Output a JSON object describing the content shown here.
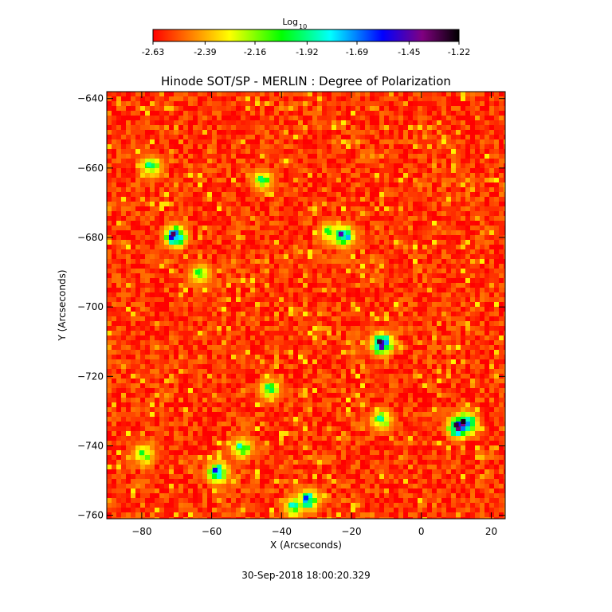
{
  "chart_data": {
    "type": "heatmap",
    "title": "Hinode SOT/SP - MERLIN : Degree of Polarization",
    "xlabel": "X (Arcseconds)",
    "ylabel": "Y (Arcseconds)",
    "xlim": [
      -90,
      24
    ],
    "ylim": [
      -761,
      -638
    ],
    "x_ticks": [
      -80,
      -60,
      -40,
      -20,
      0,
      20
    ],
    "y_ticks": [
      -640,
      -660,
      -680,
      -700,
      -720,
      -740,
      -760
    ],
    "colorbar": {
      "label_base": "Log",
      "label_sub": "10",
      "scale": "log10",
      "range": [
        -2.63,
        -1.22
      ],
      "tick_values": [
        -2.63,
        -2.39,
        -2.16,
        -1.92,
        -1.69,
        -1.45,
        -1.22
      ],
      "tick_labels": [
        "-2.63",
        "-2.39",
        "-2.16",
        "-1.92",
        "-1.69",
        "-1.45",
        "-1.22"
      ],
      "colormap": [
        "#ff0000",
        "#ff8000",
        "#ffff00",
        "#00ff00",
        "#00ffff",
        "#0000ff",
        "#800080",
        "#000000"
      ]
    },
    "background_level": -2.55,
    "features": [
      {
        "x": -71,
        "y": -679,
        "level": -1.35
      },
      {
        "x": -23,
        "y": -679,
        "level": -1.5
      },
      {
        "x": -12,
        "y": -710,
        "level": -1.3
      },
      {
        "x": 10,
        "y": -734,
        "level": -1.3
      },
      {
        "x": 12,
        "y": -733,
        "level": -1.25
      },
      {
        "x": -59,
        "y": -747,
        "level": -1.6
      },
      {
        "x": -33,
        "y": -755,
        "level": -1.65
      },
      {
        "x": -78,
        "y": -659,
        "level": -1.9
      },
      {
        "x": -46,
        "y": -663,
        "level": -1.95
      },
      {
        "x": -12,
        "y": -732,
        "level": -1.9
      },
      {
        "x": -52,
        "y": -740,
        "level": -1.85
      },
      {
        "x": -64,
        "y": -690,
        "level": -2.0
      },
      {
        "x": -44,
        "y": -723,
        "level": -1.95
      },
      {
        "x": -80,
        "y": -742,
        "level": -2.0
      },
      {
        "x": -27,
        "y": -678,
        "level": -2.0
      },
      {
        "x": -37,
        "y": -757,
        "level": -1.85
      }
    ],
    "date_label": "30-Sep-2018 18:00:20.329"
  }
}
